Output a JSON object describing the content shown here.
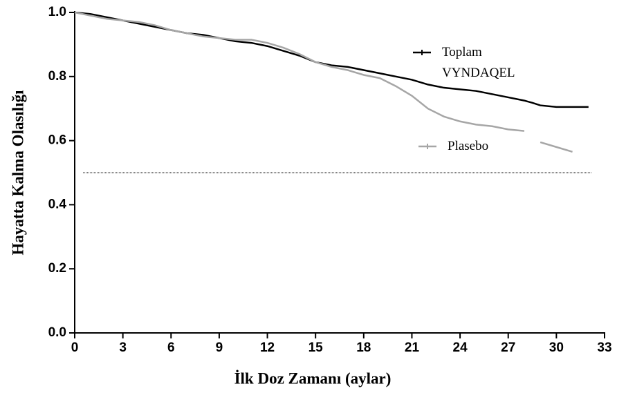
{
  "chart_data": {
    "type": "line",
    "x_label": "İlk Doz Zamanı (aylar)",
    "y_label": "Hayatta Kalma Olasılığı",
    "x": [
      0,
      1,
      2,
      3,
      4,
      5,
      6,
      7,
      8,
      9,
      10,
      11,
      12,
      13,
      14,
      15,
      16,
      17,
      18,
      19,
      20,
      21,
      22,
      23,
      24,
      25,
      26,
      27,
      28,
      28.5,
      29,
      30,
      31,
      32
    ],
    "series": [
      {
        "name": "Toplam VYNDAQEL",
        "color": "#000000",
        "values": [
          1.0,
          0.995,
          0.985,
          0.975,
          0.965,
          0.955,
          0.945,
          0.935,
          0.93,
          0.92,
          0.91,
          0.905,
          0.895,
          0.88,
          0.865,
          0.845,
          0.835,
          0.83,
          0.82,
          0.81,
          0.8,
          0.79,
          0.775,
          0.765,
          0.76,
          0.755,
          0.745,
          0.735,
          0.725,
          0.718,
          0.71,
          0.705,
          0.705,
          0.705
        ]
      },
      {
        "name": "Plasebo",
        "color": "#a6a6a6",
        "values": [
          1.0,
          0.99,
          0.98,
          0.975,
          0.97,
          0.96,
          0.945,
          0.935,
          0.925,
          0.92,
          0.915,
          0.915,
          0.905,
          0.89,
          0.87,
          0.845,
          0.83,
          0.82,
          0.805,
          0.795,
          0.77,
          0.74,
          0.7,
          0.675,
          0.66,
          0.65,
          0.645,
          0.635,
          0.63,
          null,
          0.595,
          0.58,
          0.565,
          null
        ]
      }
    ],
    "reference_line": 0.5,
    "xlim": [
      0,
      33
    ],
    "xticks": [
      0,
      3,
      6,
      9,
      12,
      15,
      18,
      21,
      24,
      27,
      30,
      33
    ],
    "ylim": [
      0,
      1
    ],
    "yticks": [
      {
        "value": 0,
        "label": "0.0"
      },
      0.2,
      0.4,
      0.6,
      0.8,
      {
        "value": 1,
        "label": "1.0"
      }
    ]
  }
}
